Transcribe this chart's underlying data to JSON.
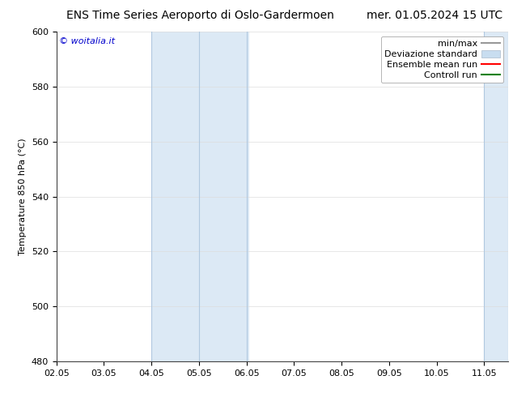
{
  "title_left": "ENS Time Series Aeroporto di Oslo-Gardermoen",
  "title_right": "mer. 01.05.2024 15 UTC",
  "ylabel": "Temperature 850 hPa (°C)",
  "ylim": [
    480,
    600
  ],
  "yticks": [
    480,
    500,
    520,
    540,
    560,
    580,
    600
  ],
  "xtick_labels": [
    "02.05",
    "03.05",
    "04.05",
    "05.05",
    "06.05",
    "07.05",
    "08.05",
    "09.05",
    "10.05",
    "11.05"
  ],
  "xtick_positions": [
    2,
    3,
    4,
    5,
    6,
    7,
    8,
    9,
    10,
    11
  ],
  "xlim": [
    2.0,
    11.5
  ],
  "shaded_bands": [
    {
      "x_start": 4.0,
      "x_end": 6.05,
      "color": "#dce9f5"
    },
    {
      "x_start": 11.0,
      "x_end": 11.5,
      "color": "#dce9f5"
    }
  ],
  "vlines": [
    4.0,
    5.0,
    6.0,
    11.0,
    11.5
  ],
  "vline_color": "#b0c8e0",
  "watermark_text": "© woitalia.it",
  "watermark_color": "#0000cc",
  "watermark_fontsize": 8,
  "legend_labels": [
    "min/max",
    "Deviazione standard",
    "Ensemble mean run",
    "Controll run"
  ],
  "legend_colors": [
    "#999999",
    "#c8ddf0",
    "red",
    "green"
  ],
  "background_color": "#ffffff",
  "title_fontsize": 10,
  "axis_fontsize": 8,
  "tick_fontsize": 8,
  "legend_fontsize": 8
}
